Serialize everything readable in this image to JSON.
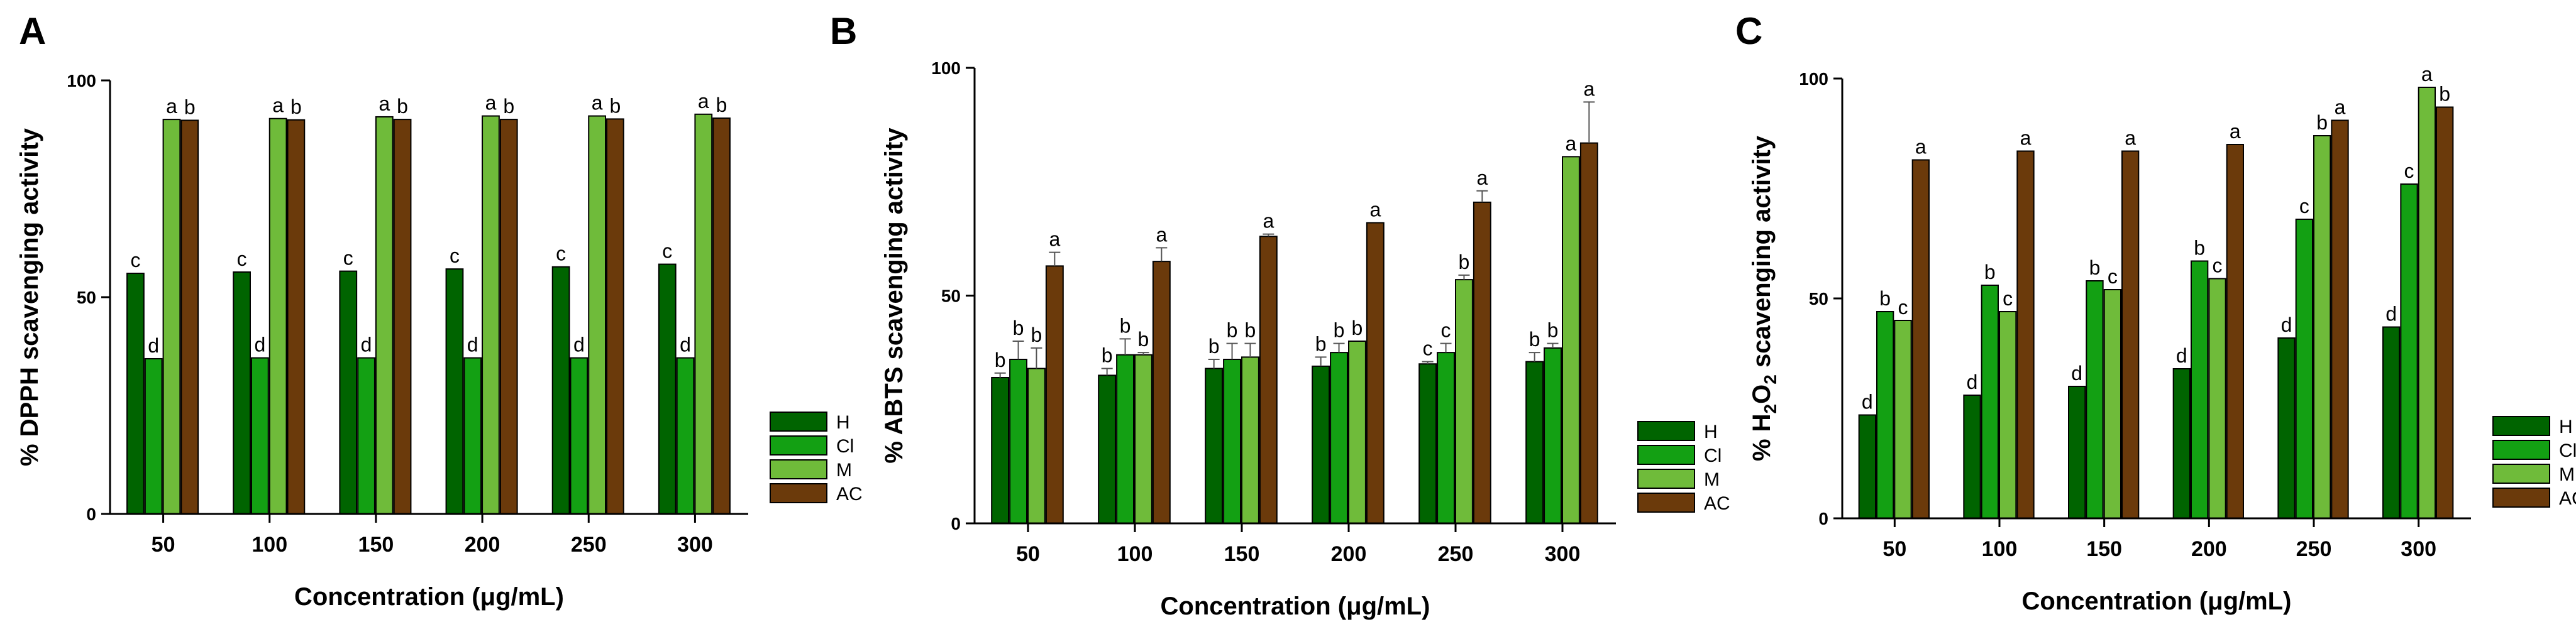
{
  "colors": {
    "H": "#006400",
    "Cl": "#13a013",
    "M": "#6fbb3a",
    "AC": "#6b3a0b"
  },
  "chart_data": [
    {
      "type": "bar",
      "panel": "A",
      "xlabel": "Concentration (μg/mL)",
      "ylabel": "% DPPH scavenging activity",
      "ylim": [
        0,
        100
      ],
      "yticks": [
        0,
        50,
        100
      ],
      "categories": [
        "50",
        "100",
        "150",
        "200",
        "250",
        "300"
      ],
      "legend": "right",
      "series": [
        {
          "name": "H",
          "values": [
            55.5,
            55.8,
            56.0,
            56.5,
            57.0,
            57.6
          ],
          "errors": [
            0,
            0,
            0,
            0,
            0,
            0
          ],
          "sig": [
            "c",
            "c",
            "c",
            "c",
            "c",
            "c"
          ]
        },
        {
          "name": "Cl",
          "values": [
            35.8,
            36.0,
            36.0,
            36.0,
            36.0,
            36.0
          ],
          "errors": [
            0,
            0,
            0,
            0,
            0,
            0
          ],
          "sig": [
            "d",
            "d",
            "d",
            "d",
            "d",
            "d"
          ]
        },
        {
          "name": "M",
          "values": [
            91.0,
            91.2,
            91.6,
            91.8,
            91.8,
            92.2
          ],
          "errors": [
            0,
            0,
            0,
            0,
            0,
            0
          ],
          "sig": [
            "a",
            "a",
            "a",
            "a",
            "a",
            "a"
          ]
        },
        {
          "name": "AC",
          "values": [
            90.8,
            90.9,
            91.0,
            91.0,
            91.1,
            91.3
          ],
          "errors": [
            0,
            0,
            0,
            0,
            0,
            0
          ],
          "sig": [
            "b",
            "b",
            "b",
            "b",
            "b",
            "b"
          ]
        }
      ]
    },
    {
      "type": "bar",
      "panel": "B",
      "xlabel": "Concentration (μg/mL)",
      "ylabel": "% ABTS scavenging activity",
      "ylim": [
        0,
        100
      ],
      "yticks": [
        0,
        50,
        100
      ],
      "categories": [
        "50",
        "100",
        "150",
        "200",
        "250",
        "300"
      ],
      "legend": "right",
      "series": [
        {
          "name": "H",
          "values": [
            32.0,
            32.5,
            34.0,
            34.5,
            35.0,
            35.5
          ],
          "errors": [
            1.0,
            1.5,
            2.0,
            2.0,
            0.5,
            2.0
          ],
          "sig": [
            "b",
            "b",
            "b",
            "b",
            "c",
            "b"
          ]
        },
        {
          "name": "Cl",
          "values": [
            36.0,
            37.0,
            36.0,
            37.5,
            37.5,
            38.5
          ],
          "errors": [
            4.0,
            3.5,
            3.5,
            2.0,
            2.0,
            1.0
          ],
          "sig": [
            "b",
            "b",
            "b",
            "b",
            "c",
            "b"
          ]
        },
        {
          "name": "M",
          "values": [
            34.0,
            37.0,
            36.5,
            40.0,
            53.5,
            80.5
          ],
          "errors": [
            4.5,
            0.5,
            3.0,
            0.0,
            1.0,
            0.0
          ],
          "sig": [
            "b",
            "b",
            "b",
            "b",
            "b",
            "a"
          ]
        },
        {
          "name": "AC",
          "values": [
            56.5,
            57.5,
            63.0,
            66.0,
            70.5,
            83.5
          ],
          "errors": [
            3.0,
            3.0,
            0.5,
            0.0,
            2.5,
            9.0
          ],
          "sig": [
            "a",
            "a",
            "a",
            "a",
            "a",
            "a"
          ]
        }
      ]
    },
    {
      "type": "bar",
      "panel": "C",
      "xlabel": "Concentration (μg/mL)",
      "ylabel_main": "% H",
      "ylabel_sub": "2",
      "ylabel_mid": "O",
      "ylabel_sub2": "2",
      "ylabel_rest": " scavenging activity",
      "ylim": [
        0,
        100
      ],
      "yticks": [
        0,
        50,
        100
      ],
      "categories": [
        "50",
        "100",
        "150",
        "200",
        "250",
        "300"
      ],
      "legend": "right",
      "series": [
        {
          "name": "H",
          "values": [
            23.5,
            28.0,
            30.0,
            34.0,
            41.0,
            43.5
          ],
          "errors": [
            0,
            0,
            0,
            0,
            0,
            0
          ],
          "sig": [
            "d",
            "d",
            "d",
            "d",
            "d",
            "d"
          ]
        },
        {
          "name": "Cl",
          "values": [
            47.0,
            53.0,
            54.0,
            58.5,
            68.0,
            76.0
          ],
          "errors": [
            0,
            0,
            0,
            0,
            0,
            0
          ],
          "sig": [
            "b",
            "b",
            "b",
            "b",
            "c",
            "c"
          ]
        },
        {
          "name": "M",
          "values": [
            45.0,
            47.0,
            52.0,
            54.5,
            87.0,
            98.0
          ],
          "errors": [
            0,
            0,
            0,
            0,
            0,
            0
          ],
          "sig": [
            "c",
            "c",
            "c",
            "c",
            "b",
            "a"
          ]
        },
        {
          "name": "AC",
          "values": [
            81.5,
            83.5,
            83.5,
            85.0,
            90.5,
            93.5
          ],
          "errors": [
            0,
            0,
            0,
            0,
            0,
            0
          ],
          "sig": [
            "a",
            "a",
            "a",
            "a",
            "a",
            "b"
          ]
        }
      ]
    }
  ]
}
